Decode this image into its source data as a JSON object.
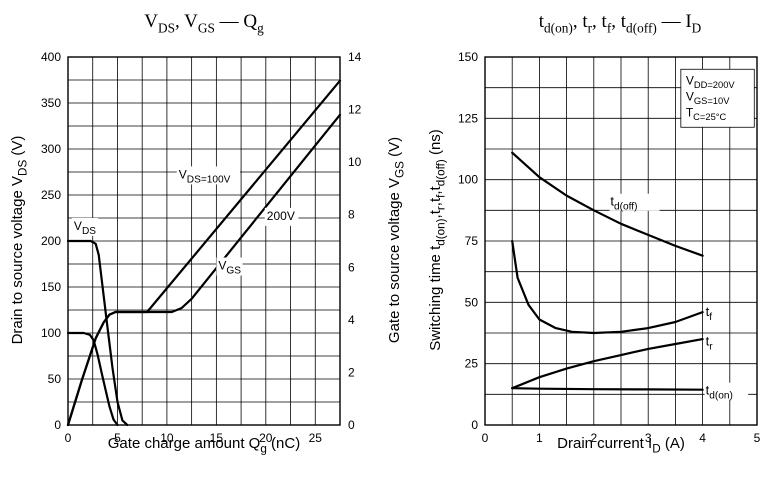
{
  "chart_data": [
    {
      "type": "line",
      "title": "V_DS, V_GS — Q_g",
      "xlabel": "Gate charge amount  Qg  (nC)",
      "ylabel": "Drain to source voltage  V_DS  (V)",
      "y2label": "Gate to source voltage  V_GS  (V)",
      "xlim": [
        0,
        27.5
      ],
      "ylim": [
        0,
        400
      ],
      "y2lim": [
        0,
        14
      ],
      "xticks": [
        0,
        5,
        10,
        15,
        20,
        25
      ],
      "yticks": [
        0,
        50,
        100,
        150,
        200,
        250,
        300,
        350,
        400
      ],
      "y2ticks": [
        0,
        2,
        4,
        6,
        8,
        10,
        12,
        14
      ],
      "grid": true,
      "series": [
        {
          "name": "V_DS (200V)",
          "axis": "left",
          "x": [
            0,
            2.3,
            2.8,
            3.1,
            3.5,
            4.0,
            4.5,
            5.0,
            5.5,
            6.0
          ],
          "y": [
            200,
            200,
            197,
            185,
            150,
            105,
            62,
            25,
            5,
            0
          ]
        },
        {
          "name": "V_DS (100V)",
          "axis": "left",
          "x": [
            0,
            1.6,
            2.2,
            2.6,
            3.0,
            3.4,
            3.8,
            4.2,
            4.6,
            5.0
          ],
          "y": [
            100,
            100,
            98,
            92,
            76,
            57,
            38,
            20,
            6,
            0
          ]
        },
        {
          "name": "V_GS (100V)",
          "axis": "right",
          "x": [
            0,
            1.4,
            2.8,
            3.6,
            4.2,
            4.8,
            8.0,
            27.5
          ],
          "y": [
            0,
            1.7,
            3.3,
            3.9,
            4.2,
            4.3,
            4.3,
            13.1
          ]
        },
        {
          "name": "V_GS (200V)",
          "axis": "right",
          "x": [
            0,
            1.4,
            2.8,
            3.6,
            4.2,
            4.8,
            10.5,
            11.5,
            12.5,
            27.5
          ],
          "y": [
            0,
            1.7,
            3.3,
            3.9,
            4.2,
            4.3,
            4.3,
            4.45,
            4.8,
            11.8
          ]
        }
      ],
      "annotations": [
        {
          "text": "V_DS",
          "x": 0.6,
          "y": 212
        },
        {
          "text": "V_DS=100V",
          "x": 11.2,
          "y": 268
        },
        {
          "text": "200V",
          "x": 20.1,
          "y": 223
        },
        {
          "text": "V_GS",
          "x": 15.2,
          "y": 169
        }
      ]
    },
    {
      "type": "line",
      "title": "t_d(on), t_r, t_f, t_d(off) — I_D",
      "xlabel": "Drain current  I_D  (A)",
      "ylabel": "Switching time  t_d(on),t_r,t_f,t_d(off)  (ns)",
      "xlim": [
        0,
        5
      ],
      "ylim": [
        0,
        150
      ],
      "xticks": [
        0,
        1,
        2,
        3,
        4,
        5
      ],
      "yticks": [
        0,
        25,
        50,
        75,
        100,
        125,
        150
      ],
      "grid": true,
      "conditions": [
        "V_DD=200V",
        "V_GS=10V",
        "T_C=25°C"
      ],
      "series": [
        {
          "name": "t_d(off)",
          "x": [
            0.5,
            1.0,
            1.5,
            2.0,
            2.5,
            3.0,
            3.5,
            4.0
          ],
          "y": [
            111,
            101,
            93.5,
            87.5,
            82,
            77.5,
            73,
            69
          ]
        },
        {
          "name": "t_f",
          "x": [
            0.5,
            0.6,
            0.8,
            1.0,
            1.3,
            1.6,
            2.0,
            2.5,
            3.0,
            3.5,
            4.0
          ],
          "y": [
            75,
            60,
            49,
            43,
            39.5,
            38,
            37.5,
            38,
            39.5,
            42,
            46
          ]
        },
        {
          "name": "t_r",
          "x": [
            0.5,
            1.0,
            1.5,
            2.0,
            2.5,
            3.0,
            3.5,
            4.0
          ],
          "y": [
            15,
            19.5,
            23,
            26,
            28.5,
            31,
            33,
            35
          ]
        },
        {
          "name": "t_d(on)",
          "x": [
            0.5,
            1.0,
            2.0,
            3.0,
            4.0
          ],
          "y": [
            15,
            14.8,
            14.6,
            14.5,
            14.4
          ]
        }
      ],
      "annotations": [
        {
          "text": "t_d(off)",
          "x": 2.25,
          "y": 91
        },
        {
          "text": "t_f",
          "x": 4.0,
          "y": 46
        },
        {
          "text": "t_r",
          "x": 4.0,
          "y": 34
        },
        {
          "text": "t_d(on)",
          "x": 4.0,
          "y": 14
        }
      ]
    }
  ]
}
